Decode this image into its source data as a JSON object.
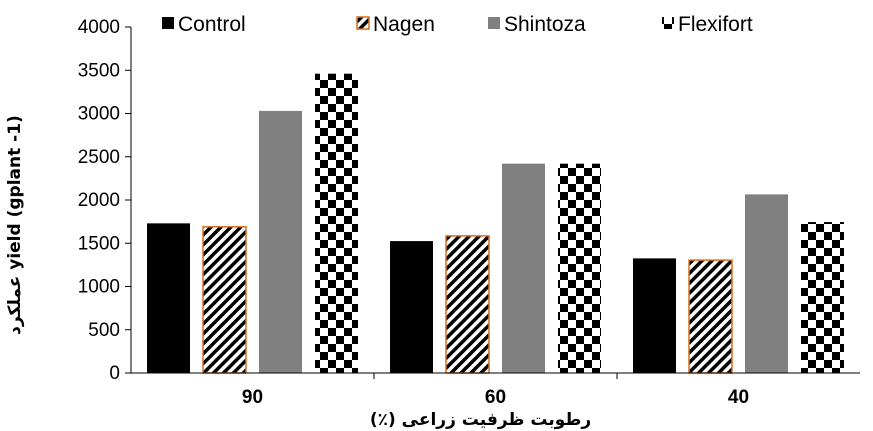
{
  "chart_data": {
    "type": "bar",
    "categories": [
      "90",
      "60",
      "40"
    ],
    "series": [
      {
        "name": "Control",
        "values": [
          1730,
          1525,
          1325
        ],
        "color": "#000000",
        "pattern": "solid"
      },
      {
        "name": "Nagen",
        "values": [
          1690,
          1585,
          1305
        ],
        "color": "#d86f1f",
        "pattern": "diagonal-stripes"
      },
      {
        "name": "Shintoza",
        "values": [
          3030,
          2420,
          2065
        ],
        "color": "#808080",
        "pattern": "solid"
      },
      {
        "name": "Flexifort",
        "values": [
          3460,
          2420,
          1745
        ],
        "color": "#000000",
        "pattern": "checkerboard"
      }
    ],
    "xlabel": "رطوبت ظرفیت زراعی (٪)",
    "ylabel": "عملکرد yield (gplant -1)",
    "ylim": [
      0,
      4000
    ],
    "yticks": [
      0,
      500,
      1000,
      1500,
      2000,
      2500,
      3000,
      3500,
      4000
    ],
    "grid": false,
    "legend_position": "top"
  }
}
